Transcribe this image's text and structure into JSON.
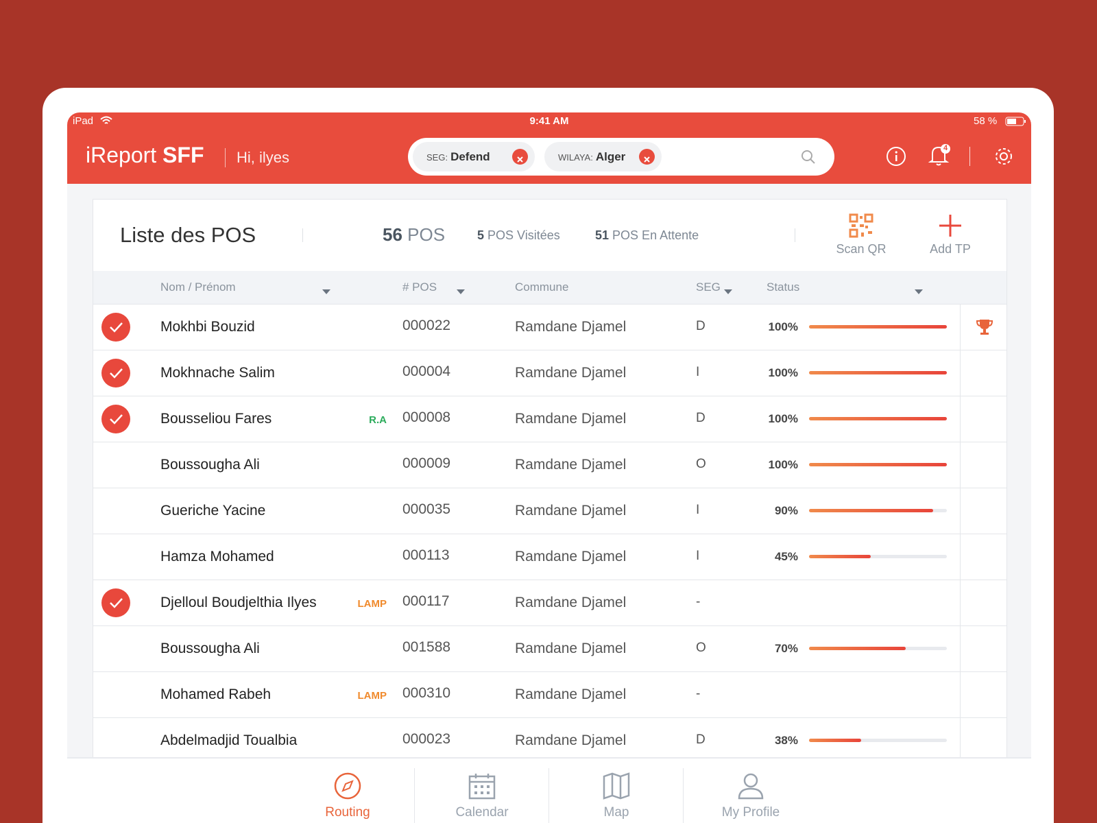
{
  "status_bar": {
    "device": "iPad",
    "time": "9:41 AM",
    "battery": "58 %"
  },
  "header": {
    "brand_light": "iReport",
    "brand_bold": "SFF",
    "greeting": "Hi, ilyes",
    "filters": [
      {
        "key": "SEG:",
        "value": "Defend"
      },
      {
        "key": "WILAYA:",
        "value": "Alger"
      }
    ],
    "notifications": 4
  },
  "toolbar": {
    "title": "Liste des POS",
    "total": {
      "count": 56,
      "label": "POS"
    },
    "visited": {
      "count": 5,
      "label": "POS Visitées"
    },
    "pending": {
      "count": 51,
      "label": "POS En Attente"
    },
    "actions": [
      "Scan QR",
      "Add TP"
    ]
  },
  "table": {
    "columns": [
      "Nom / Prénom",
      "# POS",
      "Commune",
      "SEG",
      "Status"
    ],
    "rows": [
      {
        "checked": true,
        "name": "Mokhbi Bouzid",
        "tag": null,
        "pos": "000022",
        "commune": "Ramdane Djamel",
        "seg": "D",
        "status": {
          "value": 100,
          "label": "100%"
        },
        "award": true
      },
      {
        "checked": true,
        "name": "Mokhnache Salim",
        "tag": null,
        "pos": "000004",
        "commune": "Ramdane Djamel",
        "seg": "I",
        "status": {
          "value": 100,
          "label": "100%"
        }
      },
      {
        "checked": true,
        "name": "Bousseliou Fares",
        "tag": {
          "text": "R.A",
          "color": "#2bab5b"
        },
        "pos": "000008",
        "commune": "Ramdane Djamel",
        "seg": "D",
        "status": {
          "value": 100,
          "label": "100%"
        }
      },
      {
        "checked": false,
        "name": "Boussougha Ali",
        "tag": null,
        "pos": "000009",
        "commune": "Ramdane Djamel",
        "seg": "O",
        "status": {
          "value": 100,
          "label": "100%"
        }
      },
      {
        "checked": false,
        "name": "Gueriche Yacine",
        "tag": null,
        "pos": "000035",
        "commune": "Ramdane Djamel",
        "seg": "I",
        "status": {
          "value": 90,
          "label": "90%"
        }
      },
      {
        "checked": false,
        "name": "Hamza Mohamed",
        "tag": null,
        "pos": "000113",
        "commune": "Ramdane Djamel",
        "seg": "I",
        "status": {
          "value": 45,
          "label": "45%"
        }
      },
      {
        "checked": true,
        "name": "Djelloul Boudjelthia Ilyes",
        "tag": {
          "text": "LAMP",
          "color": "#f08a2c"
        },
        "pos": "000117",
        "commune": "Ramdane Djamel",
        "seg": "-",
        "status": null
      },
      {
        "checked": false,
        "name": "Boussougha Ali",
        "tag": null,
        "pos": "001588",
        "commune": "Ramdane Djamel",
        "seg": "O",
        "status": {
          "value": 70,
          "label": "70%"
        }
      },
      {
        "checked": false,
        "name": "Mohamed Rabeh",
        "tag": {
          "text": "LAMP",
          "color": "#f08a2c"
        },
        "pos": "000310",
        "commune": "Ramdane Djamel",
        "seg": "-",
        "status": null
      },
      {
        "checked": false,
        "name": "Abdelmadjid Toualbia",
        "tag": null,
        "pos": "000023",
        "commune": "Ramdane Djamel",
        "seg": "D",
        "status": {
          "value": 38,
          "label": "38%"
        }
      }
    ]
  },
  "tabs": {
    "items": [
      "Routing",
      "Calendar",
      "Map",
      "My Profile"
    ],
    "active": 0
  }
}
